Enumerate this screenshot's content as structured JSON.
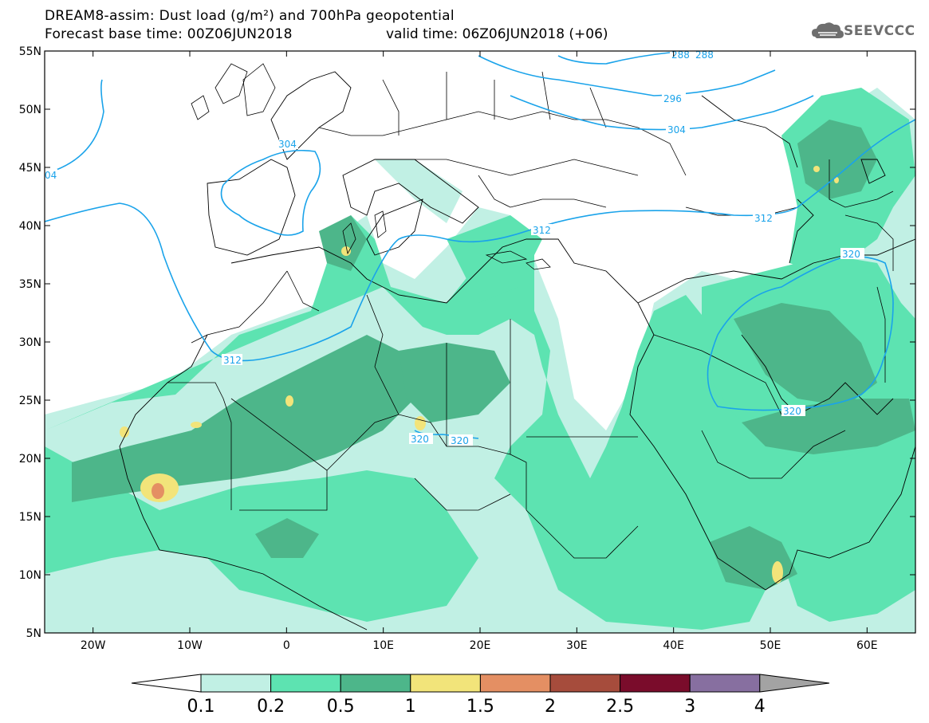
{
  "header": {
    "title_line1": "DREAM8-assim: Dust load (g/m²) and 700hPa geopotential",
    "title_line2": "Forecast base time: 00Z06JUN2018",
    "valid_time": "valid time: 06Z06JUN2018 (+06)"
  },
  "logo": {
    "text": "SEEVCCC",
    "icon": "cloud-logo-icon"
  },
  "map": {
    "lon_range": [
      -25,
      65
    ],
    "lat_range": [
      5,
      55
    ],
    "lat_ticks": [
      "5N",
      "10N",
      "15N",
      "20N",
      "25N",
      "30N",
      "35N",
      "40N",
      "45N",
      "50N",
      "55N"
    ],
    "lon_ticks": [
      "20W",
      "10W",
      "0",
      "10E",
      "20E",
      "30E",
      "40E",
      "50E",
      "60E"
    ],
    "contour_color": "#1aa3ea",
    "contour_labels": [
      "288",
      "288",
      "296",
      "304",
      "304",
      "04",
      "312",
      "312",
      "312",
      "320",
      "320",
      "320",
      "320"
    ]
  },
  "colorbar": {
    "labels": [
      "0.1",
      "0.2",
      "0.5",
      "1",
      "1.5",
      "2",
      "2.5",
      "3",
      "4"
    ],
    "colors": [
      "#ffffff",
      "#c1f0e4",
      "#5de3b1",
      "#4db68a",
      "#f2e47a",
      "#e48f63",
      "#a64c3c",
      "#7a0c2b",
      "#876fa0",
      "#a3a3a3"
    ]
  }
}
